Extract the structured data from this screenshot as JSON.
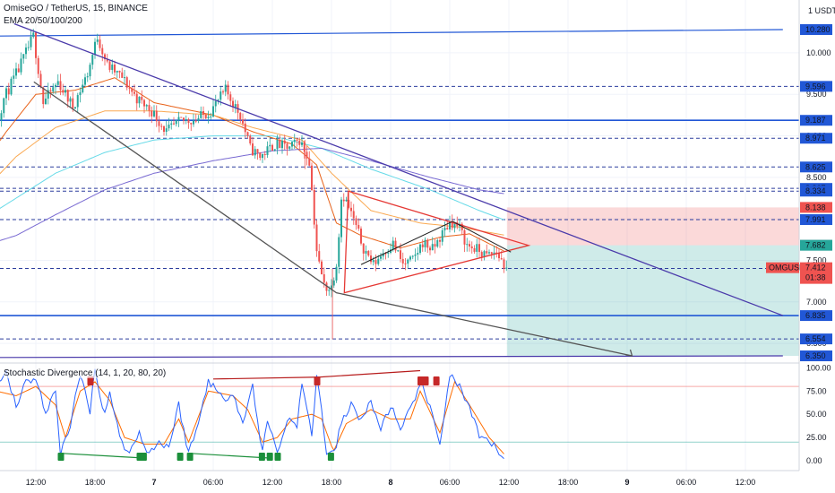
{
  "header": {
    "title": "OmiseGO / TetherUS, 15, BINANCE",
    "ema_label": "EMA 20/50/100/200",
    "currency_unit": "USDT"
  },
  "indicator": {
    "label": "Stochastic Divergence (14, 1, 20, 80, 20)"
  },
  "price_tag": {
    "symbol": "OMGUSDT",
    "price": "7.412",
    "countdown": "01:38",
    "color": "#ef5350"
  },
  "colors": {
    "up": "#26a69a",
    "down": "#ef5350",
    "trendline": "#4a3aaa",
    "hline": "#2157d6",
    "dash": "#2d3e9e",
    "triangle": "#e53935",
    "arrow": "#555555",
    "ema20": "#e65100",
    "ema50": "#f9a03f",
    "ema100": "#55d6e6",
    "ema200": "#6a5acd",
    "stoch_k": "#2962ff",
    "stoch_d": "#ff6d00",
    "div_bull": "#1b8f3a",
    "div_bear": "#b71c1c"
  },
  "chart_data": [
    {
      "type": "candlestick",
      "title": "OmiseGO / TetherUS, 15, BINANCE",
      "ylim": [
        6.35,
        10.7
      ],
      "y_ticks": [
        "10.000",
        "9.500",
        "9.000",
        "8.500",
        "8.000",
        "7.500",
        "7.000",
        "6.500"
      ],
      "x_tick_labels": [
        "12:00",
        "18:00",
        "7",
        "06:00",
        "12:00",
        "18:00",
        "8",
        "06:00",
        "12:00",
        "18:00",
        "9",
        "06:00",
        "12:00"
      ],
      "x_ticks_hours": [
        -12,
        -6,
        0,
        6,
        12,
        18,
        24,
        30,
        36,
        42,
        48,
        54,
        60
      ],
      "price_levels": [
        {
          "label": "10.280",
          "value": 10.28,
          "kind": "trend-end",
          "color": "#2157d6"
        },
        {
          "label": "9.596",
          "value": 9.596,
          "kind": "dashed",
          "color": "#2157d6"
        },
        {
          "label": "9.187",
          "value": 9.187,
          "kind": "solid",
          "color": "#2157d6"
        },
        {
          "label": "8.971",
          "value": 8.971,
          "kind": "dashed",
          "color": "#2157d6"
        },
        {
          "label": "8.625",
          "value": 8.625,
          "kind": "dashed",
          "color": "#2157d6"
        },
        {
          "label": "8.367",
          "value": 8.367,
          "kind": "dashed",
          "color": "#2157d6"
        },
        {
          "label": "8.334",
          "value": 8.334,
          "kind": "dashed",
          "color": "#2157d6"
        },
        {
          "label": "8.138",
          "value": 8.138,
          "kind": "stop",
          "color": "#ef5350"
        },
        {
          "label": "7.991",
          "value": 7.991,
          "kind": "dashed",
          "color": "#2157d6"
        },
        {
          "label": "7.683",
          "value": 7.683,
          "kind": "marker",
          "color": "#787b86"
        },
        {
          "label": "7.682",
          "value": 7.682,
          "kind": "entry",
          "color": "#26a69a"
        },
        {
          "label": "7.403",
          "value": 7.403,
          "kind": "dashed",
          "color": "#2157d6"
        },
        {
          "label": "6.835",
          "value": 6.835,
          "kind": "solid",
          "color": "#2157d6"
        },
        {
          "label": "6.554",
          "value": 6.554,
          "kind": "dashed",
          "color": "#2157d6"
        },
        {
          "label": "6.350",
          "value": 6.35,
          "kind": "target",
          "color": "#2157d6"
        }
      ],
      "position": {
        "type": "short",
        "entry": 7.682,
        "stop": 8.138,
        "target": 6.35,
        "start_hour": 35.8,
        "end_hour": 63.8
      },
      "drawings": {
        "descending_trendline": [
          [
            -14.2,
            10.35
          ],
          [
            63.8,
            6.835
          ]
        ],
        "ascending_line": [
          [
            -18,
            6.33
          ],
          [
            63.8,
            6.35
          ]
        ],
        "upper_level_line": [
          [
            -18,
            10.2
          ],
          [
            63.8,
            10.28
          ]
        ],
        "triangle": [
          [
            19.7,
            8.334
          ],
          [
            19.3,
            7.11
          ],
          [
            38.0,
            7.68
          ]
        ],
        "path_arrow": [
          [
            -12.2,
            9.65
          ],
          [
            18.5,
            7.11
          ],
          [
            48.5,
            6.35
          ]
        ]
      },
      "series_keypoints": [
        {
          "name": "price",
          "points": [
            [
              -18,
              8.56
            ],
            [
              -16.5,
              8.8
            ],
            [
              -15,
              9.45
            ],
            [
              -13.5,
              9.8
            ],
            [
              -12,
              10.2
            ],
            [
              -11,
              9.4
            ],
            [
              -9.5,
              9.65
            ],
            [
              -8,
              9.35
            ],
            [
              -6.5,
              9.75
            ],
            [
              -5.5,
              10.2
            ],
            [
              -4.5,
              9.85
            ],
            [
              -3,
              9.7
            ],
            [
              -1.5,
              9.45
            ],
            [
              0,
              9.3
            ],
            [
              1.5,
              9.05
            ],
            [
              3,
              9.18
            ],
            [
              4.5,
              9.2
            ],
            [
              6,
              9.3
            ],
            [
              7.5,
              9.55
            ],
            [
              9,
              9.25
            ],
            [
              10,
              8.85
            ],
            [
              11,
              8.75
            ],
            [
              12.5,
              8.9
            ],
            [
              14,
              8.85
            ],
            [
              15,
              8.95
            ],
            [
              16,
              8.7
            ],
            [
              16.8,
              7.55
            ],
            [
              17.5,
              7.2
            ],
            [
              18.2,
              7.15
            ],
            [
              18.8,
              7.5
            ],
            [
              19.3,
              8.33
            ],
            [
              20.3,
              8.05
            ],
            [
              21.5,
              7.65
            ],
            [
              22.5,
              7.45
            ],
            [
              23.5,
              7.6
            ],
            [
              24.5,
              7.7
            ],
            [
              25.5,
              7.45
            ],
            [
              26.5,
              7.5
            ],
            [
              27.5,
              7.72
            ],
            [
              28.5,
              7.63
            ],
            [
              29.5,
              7.82
            ],
            [
              30.3,
              7.97
            ],
            [
              31.2,
              7.9
            ],
            [
              32,
              7.68
            ],
            [
              33,
              7.63
            ],
            [
              34,
              7.55
            ],
            [
              35,
              7.6
            ],
            [
              35.7,
              7.45
            ]
          ]
        },
        {
          "name": "EMA 20",
          "points": [
            [
              -18,
              8.55
            ],
            [
              -15,
              9.05
            ],
            [
              -12,
              9.5
            ],
            [
              -8,
              9.55
            ],
            [
              -4,
              9.7
            ],
            [
              0,
              9.4
            ],
            [
              6,
              9.25
            ],
            [
              10,
              9.05
            ],
            [
              14,
              8.9
            ],
            [
              16.5,
              8.65
            ],
            [
              18.5,
              7.95
            ],
            [
              21,
              7.8
            ],
            [
              25,
              7.65
            ],
            [
              29,
              7.78
            ],
            [
              32,
              7.82
            ],
            [
              35.7,
              7.6
            ]
          ]
        },
        {
          "name": "EMA 50",
          "points": [
            [
              -18,
              8.25
            ],
            [
              -14,
              8.75
            ],
            [
              -10,
              9.1
            ],
            [
              -5,
              9.3
            ],
            [
              0,
              9.3
            ],
            [
              6,
              9.25
            ],
            [
              10,
              9.1
            ],
            [
              15,
              8.95
            ],
            [
              18,
              8.55
            ],
            [
              22,
              8.1
            ],
            [
              27,
              7.95
            ],
            [
              31,
              7.9
            ],
            [
              35.7,
              7.8
            ]
          ]
        },
        {
          "name": "EMA 100",
          "points": [
            [
              -18,
              7.95
            ],
            [
              -14,
              8.25
            ],
            [
              -10,
              8.55
            ],
            [
              -5,
              8.8
            ],
            [
              0,
              8.95
            ],
            [
              6,
              9.0
            ],
            [
              12,
              9.0
            ],
            [
              17,
              8.85
            ],
            [
              22,
              8.6
            ],
            [
              28,
              8.35
            ],
            [
              33,
              8.1
            ],
            [
              35.7,
              7.98
            ]
          ]
        },
        {
          "name": "EMA 200",
          "points": [
            [
              -18,
              7.65
            ],
            [
              -14,
              7.8
            ],
            [
              -10,
              8.05
            ],
            [
              -5,
              8.35
            ],
            [
              0,
              8.55
            ],
            [
              6,
              8.7
            ],
            [
              12,
              8.82
            ],
            [
              17,
              8.85
            ],
            [
              22,
              8.7
            ],
            [
              28,
              8.5
            ],
            [
              33,
              8.35
            ],
            [
              35.7,
              8.3
            ]
          ]
        }
      ]
    },
    {
      "type": "line",
      "title": "Stochastic Divergence (14, 1, 20, 80, 20)",
      "ylim": [
        0,
        100
      ],
      "y_ticks": [
        "100.00",
        "75.00",
        "50.00",
        "25.00",
        "0.00"
      ],
      "levels": [
        80,
        20
      ],
      "series": [
        {
          "name": "K",
          "points": [
            [
              -18,
              65
            ],
            [
              -17,
              40
            ],
            [
              -16,
              85
            ],
            [
              -15,
              95
            ],
            [
              -14,
              60
            ],
            [
              -13,
              85
            ],
            [
              -12,
              90
            ],
            [
              -11,
              50
            ],
            [
              -10,
              75
            ],
            [
              -9.5,
              8
            ],
            [
              -8.5,
              40
            ],
            [
              -7.5,
              92
            ],
            [
              -6.5,
              55
            ],
            [
              -6,
              97
            ],
            [
              -5,
              50
            ],
            [
              -4.5,
              75
            ],
            [
              -3.5,
              25
            ],
            [
              -2.5,
              8
            ],
            [
              -1.5,
              30
            ],
            [
              -0.5,
              8
            ],
            [
              0.5,
              20
            ],
            [
              1.5,
              15
            ],
            [
              2.5,
              60
            ],
            [
              3.5,
              8
            ],
            [
              4.5,
              40
            ],
            [
              5.5,
              88
            ],
            [
              7,
              65
            ],
            [
              8,
              75
            ],
            [
              9,
              40
            ],
            [
              10,
              80
            ],
            [
              11,
              8
            ],
            [
              11.5,
              45
            ],
            [
              12.5,
              8
            ],
            [
              13.5,
              45
            ],
            [
              14.5,
              40
            ],
            [
              15,
              80
            ],
            [
              16,
              30
            ],
            [
              16.5,
              90
            ],
            [
              17,
              55
            ],
            [
              17.5,
              8
            ],
            [
              18.2,
              5
            ],
            [
              19,
              40
            ],
            [
              20,
              60
            ],
            [
              21,
              45
            ],
            [
              22,
              62
            ],
            [
              23,
              35
            ],
            [
              24,
              60
            ],
            [
              25,
              30
            ],
            [
              26,
              55
            ],
            [
              27,
              85
            ],
            [
              28,
              55
            ],
            [
              29,
              20
            ],
            [
              30,
              92
            ],
            [
              31,
              80
            ],
            [
              32,
              55
            ],
            [
              33,
              25
            ],
            [
              34,
              20
            ],
            [
              35,
              10
            ],
            [
              35.7,
              2
            ]
          ]
        },
        {
          "name": "D",
          "points": [
            [
              -18,
              60
            ],
            [
              -16,
              75
            ],
            [
              -14,
              70
            ],
            [
              -12,
              80
            ],
            [
              -10,
              60
            ],
            [
              -9,
              25
            ],
            [
              -7.5,
              75
            ],
            [
              -6,
              85
            ],
            [
              -4.5,
              65
            ],
            [
              -3,
              25
            ],
            [
              -1,
              18
            ],
            [
              1,
              18
            ],
            [
              2.5,
              45
            ],
            [
              3.5,
              20
            ],
            [
              5.5,
              75
            ],
            [
              8,
              70
            ],
            [
              9.5,
              55
            ],
            [
              11,
              20
            ],
            [
              12.5,
              25
            ],
            [
              14,
              45
            ],
            [
              16,
              50
            ],
            [
              17,
              45
            ],
            [
              18.2,
              10
            ],
            [
              19.5,
              40
            ],
            [
              22,
              55
            ],
            [
              24,
              45
            ],
            [
              26,
              45
            ],
            [
              27,
              75
            ],
            [
              29,
              30
            ],
            [
              30.5,
              85
            ],
            [
              32,
              60
            ],
            [
              34,
              25
            ],
            [
              35.7,
              5
            ]
          ]
        }
      ],
      "divergences": [
        {
          "kind": "bull",
          "from": [
            -9.5,
            8
          ],
          "to": [
            -1.2,
            3
          ]
        },
        {
          "kind": "bull",
          "from": [
            3.5,
            8
          ],
          "to": [
            11.5,
            3
          ]
        },
        {
          "kind": "bear",
          "from": [
            6,
            88
          ],
          "to": [
            16.5,
            90
          ]
        },
        {
          "kind": "bear",
          "from": [
            16.7,
            90
          ],
          "to": [
            27,
            97
          ]
        }
      ],
      "bull_markers": [
        -9.5,
        -1.5,
        -1.1,
        2.6,
        3.6,
        10.9,
        11.7,
        12.5,
        17.9
      ],
      "bear_markers": [
        -6.5,
        16.5,
        27.0,
        27.5,
        28.6
      ]
    }
  ]
}
